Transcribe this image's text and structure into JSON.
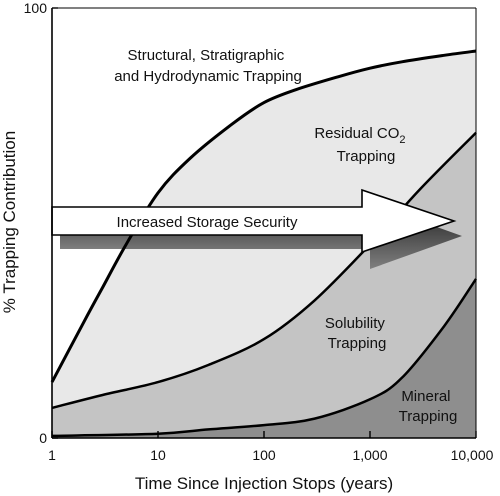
{
  "chart_data": {
    "type": "area",
    "title": "",
    "xlabel": "Time Since Injection Stops (years)",
    "ylabel": "% Trapping Contribution",
    "x_scale": "log",
    "xlim": [
      1,
      10000
    ],
    "ylim": [
      0,
      100
    ],
    "x_ticks": [
      1,
      10,
      100,
      1000,
      10000
    ],
    "x_tick_labels": [
      "1",
      "10",
      "100",
      "1,000",
      "10,000"
    ],
    "y_ticks": [
      0,
      100
    ],
    "y_tick_labels": [
      "0",
      "100"
    ],
    "grid": false,
    "legend": "none",
    "boundaries": [
      {
        "name": "Structural / Residual boundary",
        "x": [
          1,
          2,
          3,
          5,
          10,
          20,
          50,
          100,
          200,
          500,
          1000,
          2000,
          5000,
          10000
        ],
        "y": [
          13,
          27,
          35,
          45,
          57,
          65,
          73,
          78,
          81,
          84,
          86,
          87.5,
          89,
          90
        ]
      },
      {
        "name": "Residual / Solubility boundary",
        "x": [
          1,
          3,
          10,
          30,
          100,
          300,
          1000,
          3000,
          10000
        ],
        "y": [
          7,
          10,
          13,
          17,
          23,
          32,
          45,
          58,
          71
        ]
      },
      {
        "name": "Solubility / Mineral boundary",
        "x": [
          1,
          10,
          30,
          100,
          300,
          1000,
          2000,
          5000,
          10000
        ],
        "y": [
          0.5,
          1,
          2,
          3,
          4.5,
          9,
          14,
          26,
          37
        ]
      }
    ],
    "regions": [
      {
        "label_lines": [
          "Structural, Stratigraphic",
          "and Hydrodynamic Trapping"
        ],
        "fill": "#ffffff"
      },
      {
        "label_lines": [
          "Residual CO",
          "Trapping"
        ],
        "subscript": "2",
        "fill": "#e8e8e8"
      },
      {
        "label_lines": [
          "Solubility",
          "Trapping"
        ],
        "fill": "#c4c4c4"
      },
      {
        "label_lines": [
          "Mineral",
          "Trapping"
        ],
        "fill": "#8e8e8e"
      }
    ],
    "annotation": "Increased Storage Security"
  }
}
